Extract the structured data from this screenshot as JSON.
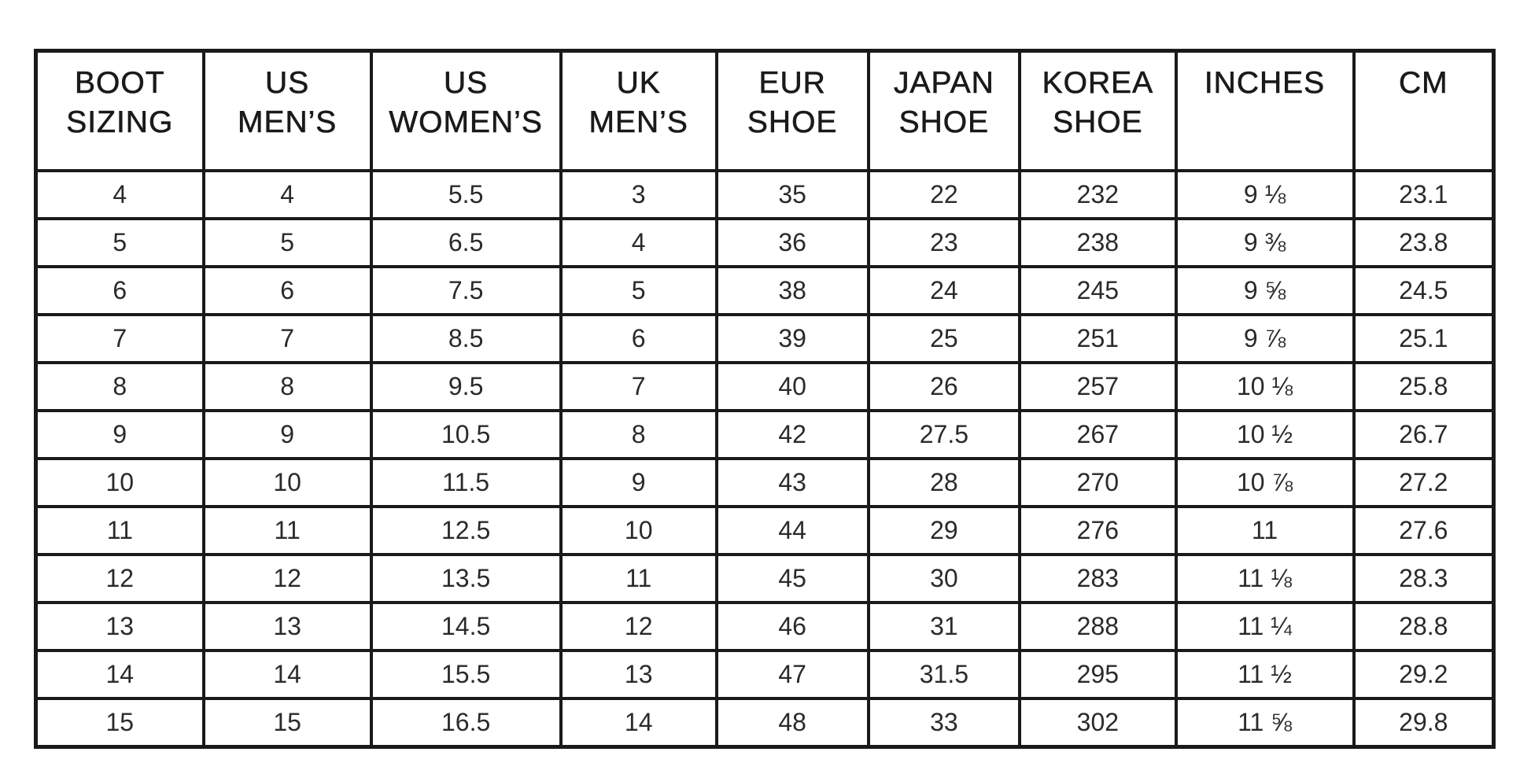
{
  "headers": [
    [
      "BOOT",
      "SIZING"
    ],
    [
      "US",
      "MEN’S"
    ],
    [
      "US",
      "WOMEN’S"
    ],
    [
      "UK",
      "MEN’S"
    ],
    [
      "EUR",
      "SHOE"
    ],
    [
      "JAPAN",
      "SHOE"
    ],
    [
      "KOREA",
      "SHOE"
    ],
    [
      "INCHES",
      ""
    ],
    [
      "CM",
      ""
    ]
  ],
  "rows": [
    [
      "4",
      "4",
      "5.5",
      "3",
      "35",
      "22",
      "232",
      "9 ⅛",
      "23.1"
    ],
    [
      "5",
      "5",
      "6.5",
      "4",
      "36",
      "23",
      "238",
      "9 ⅜",
      "23.8"
    ],
    [
      "6",
      "6",
      "7.5",
      "5",
      "38",
      "24",
      "245",
      "9 ⅝",
      "24.5"
    ],
    [
      "7",
      "7",
      "8.5",
      "6",
      "39",
      "25",
      "251",
      "9 ⅞",
      "25.1"
    ],
    [
      "8",
      "8",
      "9.5",
      "7",
      "40",
      "26",
      "257",
      "10 ⅛",
      "25.8"
    ],
    [
      "9",
      "9",
      "10.5",
      "8",
      "42",
      "27.5",
      "267",
      "10 ½",
      "26.7"
    ],
    [
      "10",
      "10",
      "11.5",
      "9",
      "43",
      "28",
      "270",
      "10 ⅞",
      "27.2"
    ],
    [
      "11",
      "11",
      "12.5",
      "10",
      "44",
      "29",
      "276",
      "11",
      "27.6"
    ],
    [
      "12",
      "12",
      "13.5",
      "11",
      "45",
      "30",
      "283",
      "11 ⅛",
      "28.3"
    ],
    [
      "13",
      "13",
      "14.5",
      "12",
      "46",
      "31",
      "288",
      "11 ¼",
      "28.8"
    ],
    [
      "14",
      "14",
      "15.5",
      "13",
      "47",
      "31.5",
      "295",
      "11 ½",
      "29.2"
    ],
    [
      "15",
      "15",
      "16.5",
      "14",
      "48",
      "33",
      "302",
      "11 ⅝",
      "29.8"
    ]
  ]
}
